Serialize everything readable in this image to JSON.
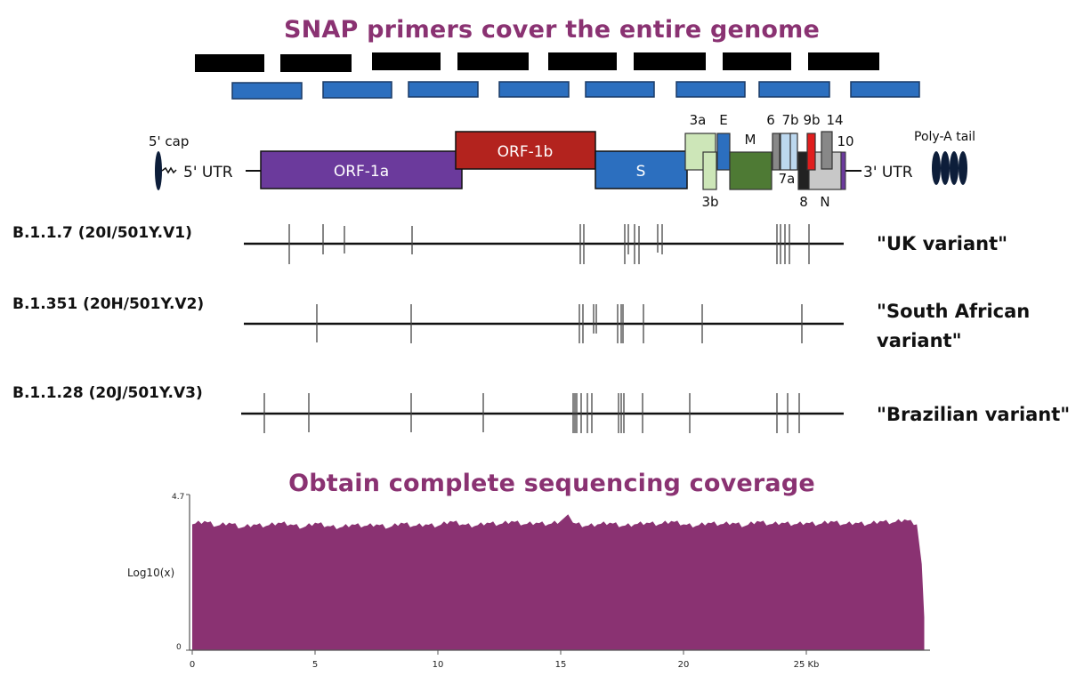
{
  "header": {
    "primers_title": "SNAP primers cover the entire genome"
  },
  "primers": {
    "top_row_color": "#000000",
    "bottom_row_color": "#2c6fbf",
    "top_row_count": 8,
    "bottom_row_count": 8
  },
  "genome": {
    "labels": {
      "five_cap": "5' cap",
      "five_utr": "5' UTR",
      "three_utr": "3' UTR",
      "polya": "Poly-A tail"
    },
    "genes": [
      {
        "name": "ORF-1a",
        "color": "#6b3a9c"
      },
      {
        "name": "ORF-1b",
        "color": "#b3231e"
      },
      {
        "name": "S",
        "color": "#2c6fbf"
      },
      {
        "name": "3a",
        "color": "#cde6b8"
      },
      {
        "name": "3b",
        "color": "#cde6b8"
      },
      {
        "name": "E",
        "color": "#2c6fbf"
      },
      {
        "name": "M",
        "color": "#4e7a34"
      },
      {
        "name": "6",
        "color": "#888888"
      },
      {
        "name": "7b",
        "color": "#bcd8ef"
      },
      {
        "name": "7a",
        "color": "#bcd8ef"
      },
      {
        "name": "8",
        "color": "#222222"
      },
      {
        "name": "9b",
        "color": "#e01e1e"
      },
      {
        "name": "14",
        "color": "#888888"
      },
      {
        "name": "N",
        "color": "#c8c8c8"
      },
      {
        "name": "10",
        "color": "#6b3a9c"
      }
    ]
  },
  "variants": [
    {
      "name": "B.1.1.7 (20I/501Y.V1)",
      "label": "\"UK variant\""
    },
    {
      "name": "B.1.351 (20H/501Y.V2)",
      "label": "\"South African variant\""
    },
    {
      "name": "B.1.1.28 (20J/501Y.V3)",
      "label": "\"Brazilian variant\""
    }
  ],
  "coverage": {
    "title": "Obtain complete sequencing coverage",
    "ylabel": "Log10(x)",
    "y_ticks": [
      "4.7",
      "0"
    ],
    "x_ticks": [
      "0",
      "5",
      "10",
      "15",
      "20",
      "25 Kb"
    ],
    "fill_color": "#8a3272"
  },
  "chart_data": {
    "type": "area",
    "x_unit": "Kb",
    "xlim": [
      0,
      30
    ],
    "ylim": [
      0,
      4.7
    ],
    "ylabel": "Log10(x)",
    "x_ticks": [
      0,
      5,
      10,
      15,
      20,
      25
    ],
    "series": [
      {
        "x": [
          0.0,
          0.5,
          1.0,
          1.5,
          2.0,
          2.5,
          3.0,
          3.5,
          4.0,
          4.5,
          5.0,
          5.5,
          6.0,
          6.5,
          7.0,
          7.5,
          8.0,
          8.5,
          9.0,
          9.5,
          10.0,
          10.5,
          11.0,
          11.5,
          12.0,
          12.5,
          13.0,
          13.5,
          14.0,
          14.5,
          15.0,
          15.3,
          15.5,
          16.0,
          16.5,
          17.0,
          17.5,
          18.0,
          18.5,
          19.0,
          19.5,
          20.0,
          20.5,
          21.0,
          21.5,
          22.0,
          22.5,
          23.0,
          23.5,
          24.0,
          24.5,
          25.0,
          25.5,
          26.0,
          26.5,
          27.0,
          27.5,
          28.0,
          28.5,
          29.0,
          29.5,
          29.7,
          29.8
        ],
        "y": [
          3.8,
          3.9,
          3.75,
          3.85,
          3.7,
          3.8,
          3.75,
          3.85,
          3.8,
          3.7,
          3.85,
          3.75,
          3.7,
          3.8,
          3.75,
          3.8,
          3.7,
          3.85,
          3.75,
          3.8,
          3.75,
          3.9,
          3.8,
          3.75,
          3.85,
          3.8,
          3.9,
          3.8,
          3.85,
          3.8,
          3.9,
          4.1,
          3.85,
          3.75,
          3.8,
          3.85,
          3.75,
          3.8,
          3.85,
          3.8,
          3.9,
          3.8,
          3.75,
          3.85,
          3.8,
          3.85,
          3.75,
          3.9,
          3.8,
          3.85,
          3.8,
          3.85,
          3.8,
          3.9,
          3.8,
          3.85,
          3.8,
          3.9,
          3.85,
          3.95,
          3.8,
          2.6,
          1.0
        ]
      }
    ]
  }
}
